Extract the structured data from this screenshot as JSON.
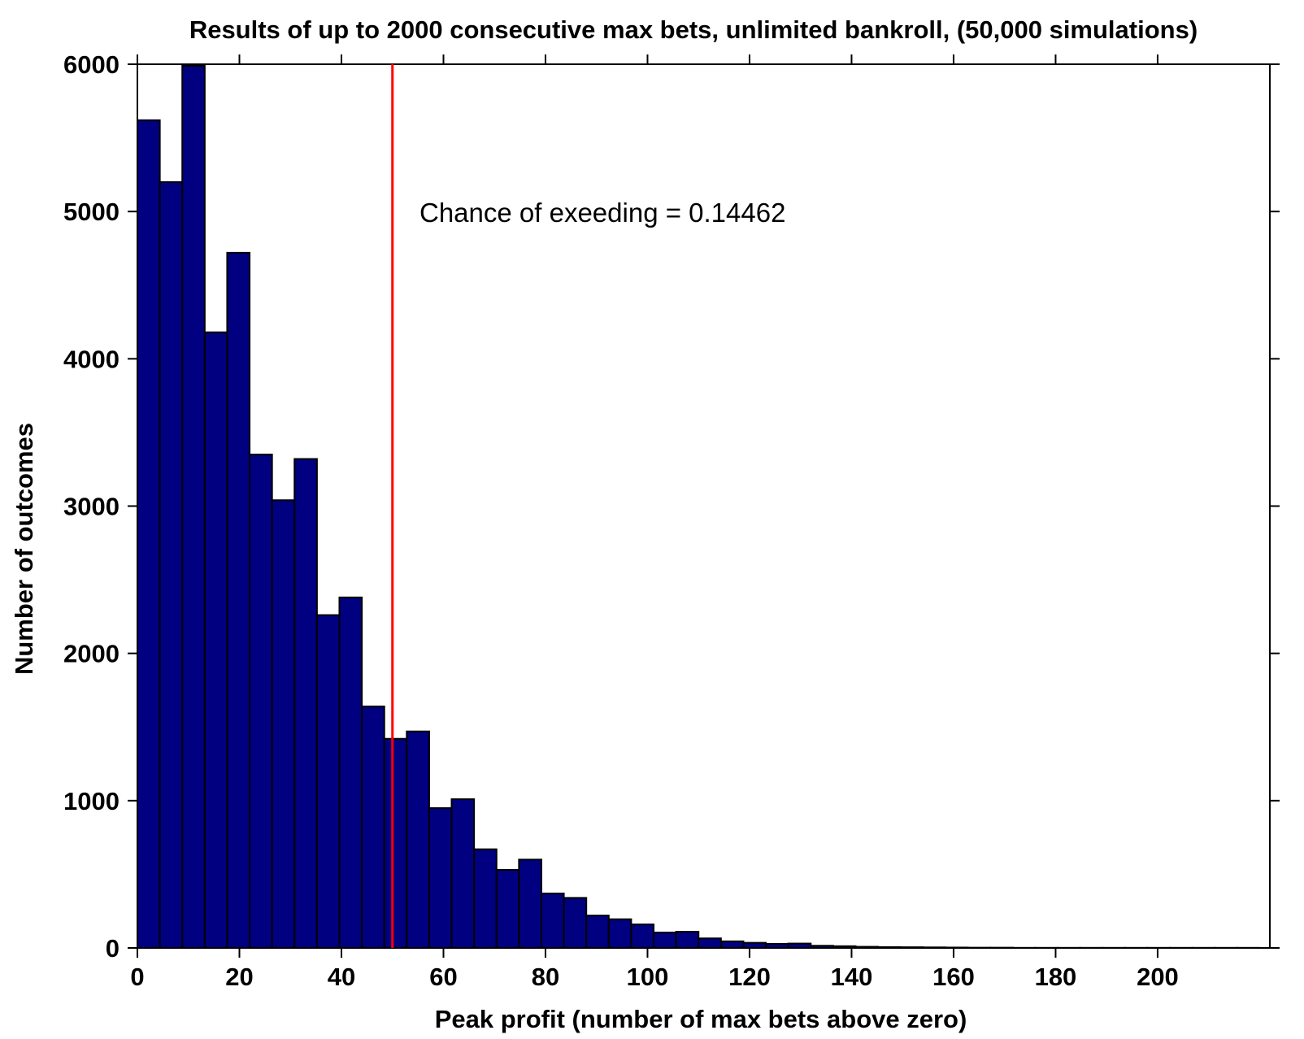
{
  "chart_data": {
    "type": "bar",
    "title": "Results of up to 2000 consecutive max bets, unlimited bankroll, (50,000 simulations)",
    "xlabel": "Peak profit (number of max bets above zero)",
    "ylabel": "Number of outcomes",
    "xlim": [
      0,
      222
    ],
    "ylim": [
      0,
      6000
    ],
    "xticks": [
      0,
      20,
      40,
      60,
      80,
      100,
      120,
      140,
      160,
      180,
      200
    ],
    "yticks": [
      0,
      1000,
      2000,
      3000,
      4000,
      5000,
      6000
    ],
    "bin_width": 4.4,
    "bin_start": 0,
    "bar_color": "#000080",
    "values": [
      5620,
      5200,
      5990,
      4180,
      4720,
      3350,
      3040,
      3320,
      2260,
      2380,
      1640,
      1420,
      1470,
      950,
      1010,
      670,
      530,
      600,
      370,
      340,
      220,
      195,
      160,
      105,
      110,
      65,
      45,
      35,
      28,
      30,
      15,
      12,
      8,
      6,
      5,
      4,
      3,
      2,
      2,
      1,
      1,
      1,
      1,
      1,
      1,
      1,
      1,
      1,
      1,
      1
    ],
    "threshold": {
      "x": 50,
      "color": "#ff0000"
    },
    "annotation": "Chance of exeeding = 0.14462",
    "grid": false
  }
}
